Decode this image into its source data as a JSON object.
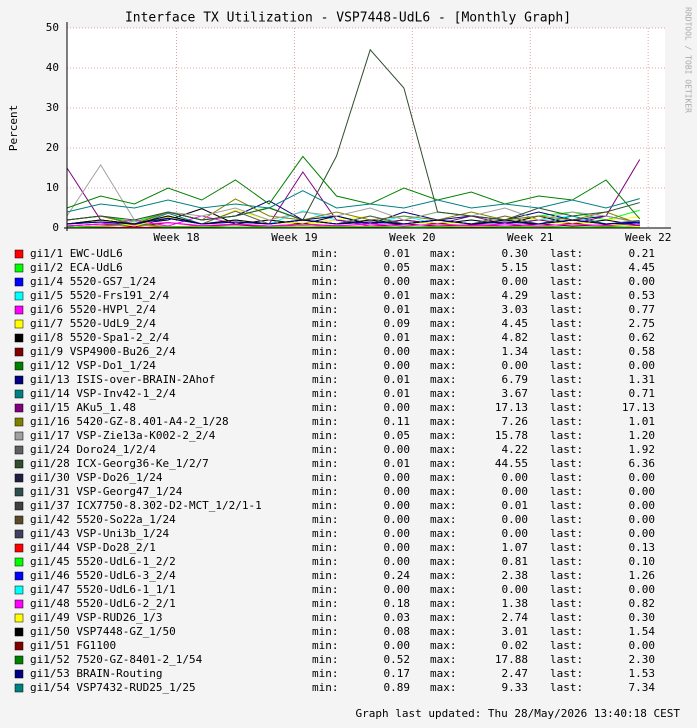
{
  "chart_data": {
    "type": "line",
    "title": "Interface TX Utilization - VSP7448-UdL6 - [Monthly Graph]",
    "y_label": "Percent",
    "side_text": "RRDTOOL / TOBI OETIKER",
    "footer": "Graph last updated: Thu 28/May/2026 13:40:18 CEST",
    "stat_labels": [
      "min:",
      "max:",
      "last:"
    ],
    "xlim": [
      0,
      35.5
    ],
    "xticks": [
      {
        "value": 6.5,
        "label": "Week 18"
      },
      {
        "value": 13.5,
        "label": "Week 19"
      },
      {
        "value": 20.5,
        "label": "Week 20"
      },
      {
        "value": 27.5,
        "label": "Week 21"
      },
      {
        "value": 34.5,
        "label": "Week 22"
      }
    ],
    "ylim": [
      0,
      50
    ],
    "yticks": [
      0,
      10,
      20,
      30,
      40,
      50
    ],
    "grid": true,
    "x": [
      0,
      2,
      4,
      6,
      8,
      10,
      12,
      14,
      16,
      18,
      20,
      22,
      24,
      26,
      28,
      30,
      32,
      34
    ],
    "series": [
      {
        "name": "gi1/1 EWC-UdL6",
        "color": "#ff0000",
        "min": "0.01",
        "max": "0.30",
        "last": "0.21",
        "values": [
          0.1,
          0.2,
          0.1,
          0.3,
          0.1,
          0.2,
          0.1,
          0.1,
          0.2,
          0.1,
          0.3,
          0.1,
          0.2,
          0.1,
          0.1,
          0.2,
          0.1,
          0.21
        ]
      },
      {
        "name": "gi1/2 ECA-UdL6",
        "color": "#00ff00",
        "min": "0.05",
        "max": "5.15",
        "last": "4.45",
        "values": [
          2,
          3,
          1.5,
          4,
          2,
          3,
          5.15,
          2,
          3,
          1,
          2,
          4,
          3,
          2,
          3,
          4,
          2,
          4.45
        ]
      },
      {
        "name": "gi1/4 5520-GS7_1/24",
        "color": "#0000ff",
        "min": "0.00",
        "max": "0.00",
        "last": "0.00",
        "values": [
          0,
          0,
          0,
          0,
          0,
          0,
          0,
          0,
          0,
          0,
          0,
          0,
          0,
          0,
          0,
          0,
          0,
          0
        ]
      },
      {
        "name": "gi1/5 5520-Frs191_2/4",
        "color": "#00ffff",
        "min": "0.01",
        "max": "4.29",
        "last": "0.53",
        "values": [
          1,
          2,
          0.5,
          3,
          1,
          2,
          1,
          4.29,
          2,
          1,
          3,
          1,
          2,
          1,
          2,
          3,
          1,
          0.53
        ]
      },
      {
        "name": "gi1/6 5520-HVPl_2/4",
        "color": "#ff00ff",
        "min": "0.01",
        "max": "3.03",
        "last": "0.77",
        "values": [
          0.5,
          1,
          2,
          0.5,
          3.03,
          1,
          0.5,
          1,
          2,
          0.5,
          1,
          2,
          1,
          0.5,
          1,
          2,
          1,
          0.77
        ]
      },
      {
        "name": "gi1/7 5520-UdL9_2/4",
        "color": "#ffff00",
        "min": "0.09",
        "max": "4.45",
        "last": "2.75",
        "values": [
          1,
          2,
          1,
          3,
          1,
          4.45,
          2,
          1,
          2,
          3,
          1,
          2,
          1,
          3,
          2,
          1,
          2,
          2.75
        ]
      },
      {
        "name": "gi1/8 5520-Spa1-2_2/4",
        "color": "#000000",
        "min": "0.01",
        "max": "4.82",
        "last": "0.62",
        "values": [
          1,
          2,
          1,
          2,
          4.82,
          1,
          2,
          1,
          3,
          1,
          2,
          1,
          2,
          1,
          3,
          1,
          2,
          0.62
        ]
      },
      {
        "name": "gi1/9 VSP4900-Bu26_2/4",
        "color": "#800000",
        "min": "0.00",
        "max": "1.34",
        "last": "0.58",
        "values": [
          0.5,
          1,
          0.3,
          1.34,
          0.5,
          0.8,
          0.3,
          1,
          0.5,
          0.3,
          1,
          0.5,
          0.8,
          0.3,
          1,
          0.5,
          0.8,
          0.58
        ]
      },
      {
        "name": "gi1/12 VSP-Do1_1/24",
        "color": "#008000",
        "min": "0.00",
        "max": "0.00",
        "last": "0.00",
        "values": [
          0,
          0,
          0,
          0,
          0,
          0,
          0,
          0,
          0,
          0,
          0,
          0,
          0,
          0,
          0,
          0,
          0,
          0
        ]
      },
      {
        "name": "gi1/13 ISIS-over-BRAIN-2Ahof",
        "color": "#000080",
        "min": "0.01",
        "max": "6.79",
        "last": "1.31",
        "values": [
          2,
          3,
          1,
          4,
          2,
          3,
          6.79,
          2,
          3,
          1,
          4,
          2,
          3,
          2,
          4,
          2,
          3,
          1.31
        ]
      },
      {
        "name": "gi1/14 VSP-Inv42-1_2/4",
        "color": "#008080",
        "min": "0.01",
        "max": "3.67",
        "last": "0.71",
        "values": [
          1,
          2,
          0.5,
          3.67,
          1,
          2,
          1,
          2,
          1,
          3,
          1,
          2,
          1,
          2,
          1,
          3,
          1,
          0.71
        ]
      },
      {
        "name": "gi1/15 AKu5_1.48",
        "color": "#800080",
        "min": "0.00",
        "max": "17.13",
        "last": "17.13",
        "values": [
          15,
          2,
          1,
          3,
          1,
          2,
          1,
          14,
          2,
          1,
          2,
          1,
          3,
          1,
          2,
          1,
          3,
          17.13
        ]
      },
      {
        "name": "gi1/16 5420-GZ-8.401-A4-2_1/28",
        "color": "#808000",
        "min": "0.11",
        "max": "7.26",
        "last": "1.01",
        "values": [
          2,
          3,
          1,
          4,
          2,
          7.26,
          3,
          2,
          4,
          2,
          3,
          2,
          4,
          2,
          3,
          2,
          4,
          1.01
        ]
      },
      {
        "name": "gi1/17 VSP-Zie13a-K002-2_2/4",
        "color": "#a0a0a0",
        "min": "0.05",
        "max": "15.78",
        "last": "1.20",
        "values": [
          3,
          15.78,
          2,
          4,
          3,
          5,
          2,
          4,
          3,
          5,
          2,
          4,
          3,
          5,
          2,
          4,
          3,
          1.2
        ]
      },
      {
        "name": "gi1/24 Doro24_1/2/4",
        "color": "#606060",
        "min": "0.00",
        "max": "4.22",
        "last": "1.92",
        "values": [
          1,
          2,
          1,
          3,
          1,
          4.22,
          1,
          2,
          1,
          3,
          1,
          2,
          1,
          3,
          1,
          2,
          1,
          1.92
        ]
      },
      {
        "name": "gi1/28 ICX-Georg36-Ke_1/2/7",
        "color": "#2f4f2f",
        "min": "0.01",
        "max": "44.55",
        "last": "6.36",
        "values": [
          2,
          3,
          2,
          4,
          2,
          3,
          5,
          2,
          18,
          44.55,
          35,
          4,
          3,
          2,
          5,
          3,
          4,
          6.36
        ]
      },
      {
        "name": "gi1/30 VSP-Do26_1/24",
        "color": "#202040",
        "min": "0.00",
        "max": "0.00",
        "last": "0.00",
        "values": [
          0,
          0,
          0,
          0,
          0,
          0,
          0,
          0,
          0,
          0,
          0,
          0,
          0,
          0,
          0,
          0,
          0,
          0
        ]
      },
      {
        "name": "gi1/31 VSP-Georg47_1/24",
        "color": "#2f4f4f",
        "min": "0.00",
        "max": "0.00",
        "last": "0.00",
        "values": [
          0,
          0,
          0,
          0,
          0,
          0,
          0,
          0,
          0,
          0,
          0,
          0,
          0,
          0,
          0,
          0,
          0,
          0
        ]
      },
      {
        "name": "gi1/37 ICX7750-8.302-D2-MCT_1/2/1-1",
        "color": "#404040",
        "min": "0.00",
        "max": "0.01",
        "last": "0.00",
        "values": [
          0,
          0,
          0.01,
          0,
          0,
          0,
          0,
          0,
          0,
          0,
          0,
          0,
          0,
          0,
          0,
          0,
          0,
          0
        ]
      },
      {
        "name": "gi1/42 5520-So22a_1/24",
        "color": "#5a4a2a",
        "min": "0.00",
        "max": "0.00",
        "last": "0.00",
        "values": [
          0,
          0,
          0,
          0,
          0,
          0,
          0,
          0,
          0,
          0,
          0,
          0,
          0,
          0,
          0,
          0,
          0,
          0
        ]
      },
      {
        "name": "gi1/43 VSP-Uni3b_1/24",
        "color": "#404060",
        "min": "0.00",
        "max": "0.00",
        "last": "0.00",
        "values": [
          0,
          0,
          0,
          0,
          0,
          0,
          0,
          0,
          0,
          0,
          0,
          0,
          0,
          0,
          0,
          0,
          0,
          0
        ]
      },
      {
        "name": "gi1/44 VSP-Do28_2/1",
        "color": "#ff0000",
        "min": "0.00",
        "max": "1.07",
        "last": "0.13",
        "values": [
          0.2,
          0.5,
          1.07,
          0.3,
          0.5,
          0.2,
          0.4,
          0.6,
          0.3,
          0.5,
          0.2,
          0.4,
          0.6,
          0.3,
          0.5,
          0.2,
          0.4,
          0.13
        ]
      },
      {
        "name": "gi1/45 5520-UdL6-1_2/2",
        "color": "#00ff00",
        "min": "0.00",
        "max": "0.81",
        "last": "0.10",
        "values": [
          0.2,
          0.4,
          0.81,
          0.3,
          0.4,
          0.2,
          0.3,
          0.5,
          0.3,
          0.4,
          0.2,
          0.3,
          0.5,
          0.3,
          0.4,
          0.2,
          0.3,
          0.1
        ]
      },
      {
        "name": "gi1/46 5520-UdL6-3_2/4",
        "color": "#0000ff",
        "min": "0.24",
        "max": "2.38",
        "last": "1.26",
        "values": [
          1,
          1.5,
          0.8,
          2.38,
          1,
          1.5,
          1,
          2,
          1,
          1.5,
          1,
          2,
          1,
          1.5,
          1,
          2,
          1,
          1.26
        ]
      },
      {
        "name": "gi1/47 5520-UdL6-1_1/1",
        "color": "#00ffff",
        "min": "0.00",
        "max": "0.00",
        "last": "0.00",
        "values": [
          0,
          0,
          0,
          0,
          0,
          0,
          0,
          0,
          0,
          0,
          0,
          0,
          0,
          0,
          0,
          0,
          0,
          0
        ]
      },
      {
        "name": "gi1/48 5520-UdL6-2_2/1",
        "color": "#ff00ff",
        "min": "0.18",
        "max": "1.38",
        "last": "0.82",
        "values": [
          0.5,
          1,
          0.8,
          1.38,
          0.6,
          1,
          0.5,
          1,
          0.6,
          1,
          0.5,
          1,
          0.6,
          1,
          0.5,
          1,
          0.6,
          0.82
        ]
      },
      {
        "name": "gi1/49 VSP-RUD26_1/3",
        "color": "#ffff00",
        "min": "0.03",
        "max": "2.74",
        "last": "0.30",
        "values": [
          1,
          2,
          0.5,
          2.74,
          1,
          2,
          1,
          1.5,
          1,
          2,
          1,
          1.5,
          1,
          2,
          1,
          1.5,
          1,
          0.3
        ]
      },
      {
        "name": "gi1/50 VSP7448-GZ_1/50",
        "color": "#000000",
        "min": "0.08",
        "max": "3.01",
        "last": "1.54",
        "values": [
          1,
          2,
          1,
          3.01,
          1,
          2,
          1,
          2,
          1,
          2,
          1,
          2,
          1,
          2,
          1,
          2,
          1,
          1.54
        ]
      },
      {
        "name": "gi1/51 FG1100",
        "color": "#800000",
        "min": "0.00",
        "max": "0.02",
        "last": "0.00",
        "values": [
          0,
          0.01,
          0,
          0.02,
          0,
          0,
          0,
          0,
          0,
          0,
          0,
          0,
          0,
          0,
          0,
          0,
          0,
          0
        ]
      },
      {
        "name": "gi1/52 7520-GZ-8401-2_1/54",
        "color": "#008000",
        "min": "0.52",
        "max": "17.88",
        "last": "2.30",
        "values": [
          5,
          8,
          6,
          10,
          7,
          12,
          6,
          17.88,
          8,
          6,
          10,
          7,
          9,
          6,
          8,
          7,
          12,
          2.3
        ]
      },
      {
        "name": "gi1/53 BRAIN-Routing",
        "color": "#000080",
        "min": "0.17",
        "max": "2.47",
        "last": "1.53",
        "values": [
          1,
          1.5,
          1,
          2.47,
          1,
          1.5,
          1,
          2,
          1,
          1.5,
          1,
          2,
          1,
          1.5,
          1,
          2,
          1,
          1.53
        ]
      },
      {
        "name": "gi1/54 VSP7432-RUD25_1/25",
        "color": "#008080",
        "min": "0.89",
        "max": "9.33",
        "last": "7.34",
        "values": [
          4,
          6,
          5,
          7,
          5,
          6,
          5,
          9.33,
          5,
          6,
          5,
          7,
          5,
          6,
          5,
          7,
          5,
          7.34
        ]
      }
    ]
  }
}
